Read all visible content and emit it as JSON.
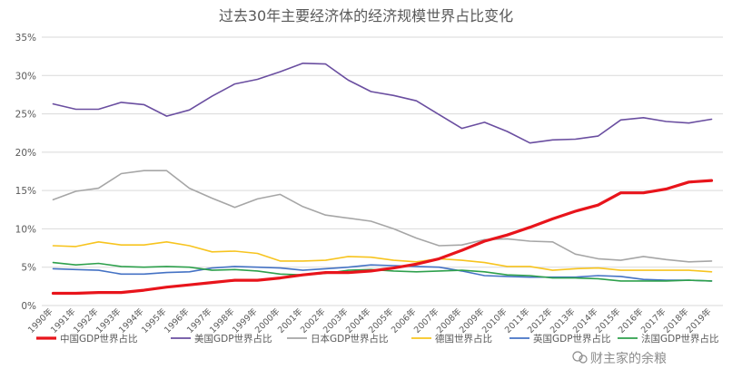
{
  "chart_data": {
    "type": "line",
    "title": "过去30年主要经济体的经济规模世界占比变化",
    "xlabel": "",
    "ylabel": "",
    "ylim": [
      0,
      35
    ],
    "yticks": [
      "0%",
      "5%",
      "10%",
      "15%",
      "20%",
      "25%",
      "30%",
      "35%"
    ],
    "grid": true,
    "legend_position": "bottom",
    "categories": [
      "1990年",
      "1991年",
      "1992年",
      "1993年",
      "1994年",
      "1995年",
      "1996年",
      "1997年",
      "1998年",
      "1999年",
      "2000年",
      "2001年",
      "2002年",
      "2003年",
      "2004年",
      "2005年",
      "2006年",
      "2007年",
      "2008年",
      "2009年",
      "2010年",
      "2011年",
      "2012年",
      "2013年",
      "2014年",
      "2015年",
      "2016年",
      "2017年",
      "2018年",
      "2019年"
    ],
    "series": [
      {
        "name": "中国GDP世界占比",
        "color": "#e8141b",
        "values": [
          1.6,
          1.6,
          1.7,
          1.7,
          2.0,
          2.4,
          2.7,
          3.0,
          3.3,
          3.3,
          3.6,
          4.0,
          4.3,
          4.3,
          4.5,
          4.9,
          5.4,
          6.1,
          7.2,
          8.4,
          9.2,
          10.2,
          11.3,
          12.3,
          13.1,
          14.7,
          14.7,
          15.2,
          16.1,
          16.3
        ]
      },
      {
        "name": "美国GDP世界占比",
        "color": "#6a4ea0",
        "values": [
          26.3,
          25.6,
          25.6,
          26.5,
          26.2,
          24.7,
          25.5,
          27.3,
          28.9,
          29.5,
          30.5,
          31.6,
          31.5,
          29.4,
          27.9,
          27.4,
          26.7,
          24.9,
          23.1,
          23.9,
          22.7,
          21.2,
          21.6,
          21.7,
          22.1,
          24.2,
          24.5,
          24.0,
          23.8,
          24.3
        ]
      },
      {
        "name": "日本GDP世界占比",
        "color": "#a6a6a6",
        "values": [
          13.8,
          14.9,
          15.3,
          17.2,
          17.6,
          17.6,
          15.3,
          14.0,
          12.8,
          13.9,
          14.5,
          12.9,
          11.8,
          11.4,
          11.0,
          10.0,
          8.8,
          7.8,
          7.9,
          8.6,
          8.7,
          8.4,
          8.3,
          6.7,
          6.1,
          5.9,
          6.4,
          6.0,
          5.7,
          5.8
        ]
      },
      {
        "name": "德国世界占比",
        "color": "#f7c41f",
        "values": [
          7.8,
          7.7,
          8.3,
          7.9,
          7.9,
          8.3,
          7.8,
          7.0,
          7.1,
          6.8,
          5.8,
          5.8,
          5.9,
          6.4,
          6.3,
          5.9,
          5.7,
          6.1,
          5.9,
          5.6,
          5.1,
          5.1,
          4.6,
          4.8,
          4.9,
          4.6,
          4.6,
          4.6,
          4.6,
          4.4
        ]
      },
      {
        "name": "英国GDP世界占比",
        "color": "#4472c4",
        "values": [
          4.8,
          4.7,
          4.6,
          4.1,
          4.1,
          4.3,
          4.4,
          4.9,
          5.1,
          5.0,
          4.9,
          4.6,
          4.8,
          5.0,
          5.3,
          5.2,
          5.1,
          5.0,
          4.5,
          3.9,
          3.8,
          3.7,
          3.7,
          3.7,
          3.9,
          3.8,
          3.4,
          3.3,
          3.3,
          3.2
        ]
      },
      {
        "name": "法国GDP世界占比",
        "color": "#2ea04c",
        "values": [
          5.6,
          5.3,
          5.5,
          5.1,
          5.0,
          5.1,
          5.0,
          4.6,
          4.7,
          4.5,
          4.1,
          4.0,
          4.2,
          4.6,
          4.7,
          4.5,
          4.4,
          4.5,
          4.6,
          4.4,
          4.0,
          3.9,
          3.6,
          3.6,
          3.5,
          3.2,
          3.2,
          3.2,
          3.3,
          3.2
        ]
      }
    ]
  },
  "watermark": {
    "text": "财主家的余粮",
    "icon": "wechat-icon"
  }
}
